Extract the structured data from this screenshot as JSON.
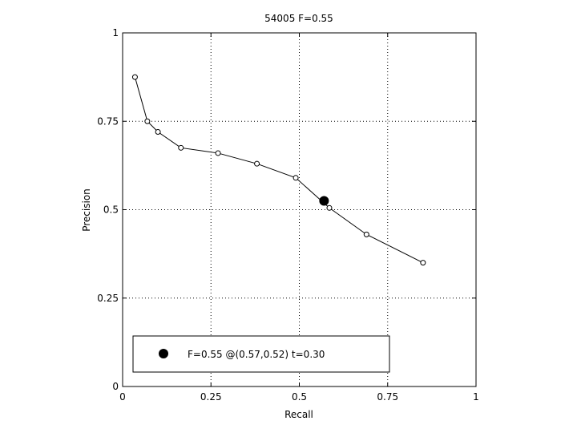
{
  "chart_data": {
    "type": "line",
    "title": "54005 F=0.55",
    "xlabel": "Recall",
    "ylabel": "Precision",
    "xlim": [
      0,
      1
    ],
    "ylim": [
      0,
      1
    ],
    "xticks": [
      0,
      0.25,
      0.5,
      0.75,
      1
    ],
    "yticks": [
      0,
      0.25,
      0.5,
      0.75,
      1
    ],
    "xtick_labels": [
      "0",
      "0.25",
      "0.5",
      "0.75",
      "1"
    ],
    "ytick_labels": [
      "0",
      "0.25",
      "0.5",
      "0.75",
      "1"
    ],
    "grid": true,
    "series": [
      {
        "x": [
          0.035,
          0.07,
          0.1,
          0.165,
          0.27,
          0.38,
          0.49,
          0.585,
          0.69,
          0.85
        ],
        "y": [
          0.875,
          0.75,
          0.72,
          0.675,
          0.66,
          0.63,
          0.59,
          0.505,
          0.43,
          0.35
        ]
      }
    ],
    "highlight": {
      "x": 0.57,
      "y": 0.525
    },
    "legend": {
      "placement": "bottom-left",
      "entries": [
        "F=0.55 @(0.57,0.52) t=0.30"
      ]
    }
  }
}
